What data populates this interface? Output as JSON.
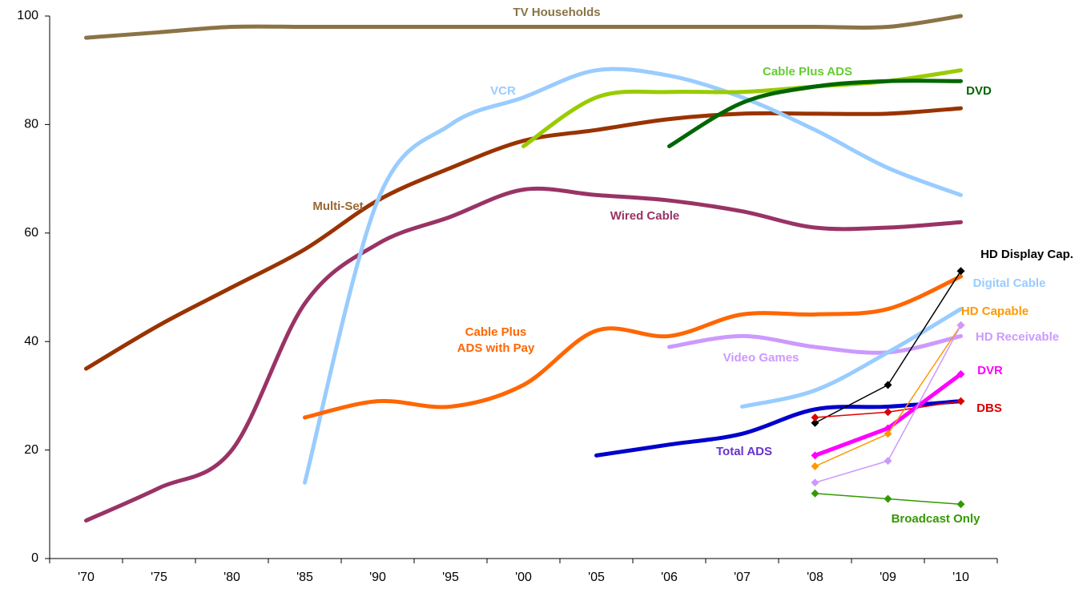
{
  "chart_data": {
    "type": "line",
    "categories": [
      "'70",
      "'75",
      "'80",
      "'85",
      "'90",
      "'95",
      "'00",
      "'05",
      "'06",
      "'07",
      "'08",
      "'09",
      "'10"
    ],
    "ylim": [
      0,
      100
    ],
    "yticks": [
      0,
      20,
      40,
      60,
      80,
      100
    ],
    "series": [
      {
        "name": "TV Households",
        "color": "#8B7346",
        "line_width": 5,
        "values": [
          96,
          97,
          98,
          98,
          98,
          98,
          98,
          98,
          98,
          98,
          98,
          98,
          100
        ]
      },
      {
        "name": "Multi-Set",
        "color": "#993300",
        "line_width": 5,
        "values": [
          35,
          43,
          50,
          57,
          66,
          72,
          77,
          79,
          81,
          82,
          82,
          82,
          83
        ]
      },
      {
        "name": "Wired Cable",
        "color": "#993366",
        "line_width": 5,
        "values": [
          7,
          13,
          20,
          47,
          58,
          63,
          68,
          67,
          66,
          64,
          61,
          61,
          62
        ]
      },
      {
        "name": "VCR",
        "color": "#99CCFF",
        "line_width": 5,
        "values": [
          null,
          null,
          null,
          14,
          66,
          80,
          85,
          90,
          89,
          85,
          79,
          72,
          67
        ]
      },
      {
        "name": "Cable Plus ADS",
        "color": "#99CC00",
        "line_width": 5,
        "values": [
          null,
          null,
          null,
          null,
          null,
          null,
          76,
          85,
          86,
          86,
          87,
          88,
          90
        ]
      },
      {
        "name": "DVD",
        "color": "#006600",
        "line_width": 5,
        "values": [
          null,
          null,
          null,
          null,
          null,
          null,
          null,
          null,
          76,
          84,
          87,
          88,
          88
        ]
      },
      {
        "name": "Cable Plus ADS with Pay",
        "color": "#FF6600",
        "line_width": 5,
        "values": [
          null,
          null,
          null,
          26,
          29,
          28,
          32,
          42,
          41,
          45,
          45,
          46,
          52
        ]
      },
      {
        "name": "Video Games",
        "color": "#CC99FF",
        "line_width": 5,
        "values": [
          null,
          null,
          null,
          null,
          null,
          null,
          null,
          null,
          39,
          41,
          39,
          38,
          41
        ]
      },
      {
        "name": "Total ADS",
        "color": "#0000CC",
        "line_width": 5,
        "values": [
          null,
          null,
          null,
          null,
          null,
          null,
          null,
          19,
          21,
          23,
          27.5,
          28,
          29
        ]
      },
      {
        "name": "Digital Cable",
        "color": "#99CCFF",
        "line_width": 5,
        "values": [
          null,
          null,
          null,
          null,
          null,
          null,
          null,
          null,
          null,
          28,
          31,
          38,
          46
        ]
      },
      {
        "name": "HD Display Cap.",
        "color": "#000000",
        "line_width": 1.5,
        "markers": true,
        "values": [
          null,
          null,
          null,
          null,
          null,
          null,
          null,
          null,
          null,
          null,
          25,
          32,
          53
        ]
      },
      {
        "name": "DBS",
        "color": "#DD0000",
        "line_width": 1.5,
        "markers": true,
        "values": [
          null,
          null,
          null,
          null,
          null,
          null,
          null,
          null,
          null,
          null,
          26,
          27,
          29
        ]
      },
      {
        "name": "DVR",
        "color": "#FF00FF",
        "line_width": 5,
        "markers": true,
        "values": [
          null,
          null,
          null,
          null,
          null,
          null,
          null,
          null,
          null,
          null,
          19,
          24,
          34
        ]
      },
      {
        "name": "HD Capable",
        "color": "#FF9900",
        "line_width": 1.5,
        "markers": true,
        "values": [
          null,
          null,
          null,
          null,
          null,
          null,
          null,
          null,
          null,
          null,
          17,
          23,
          43
        ]
      },
      {
        "name": "HD Receivable",
        "color": "#CC99FF",
        "line_width": 1.5,
        "markers": true,
        "values": [
          null,
          null,
          null,
          null,
          null,
          null,
          null,
          null,
          null,
          null,
          14,
          18,
          43
        ]
      },
      {
        "name": "Broadcast Only",
        "color": "#339900",
        "line_width": 1.5,
        "markers": true,
        "values": [
          null,
          null,
          null,
          null,
          null,
          null,
          null,
          null,
          null,
          null,
          12,
          11,
          10
        ]
      }
    ]
  }
}
